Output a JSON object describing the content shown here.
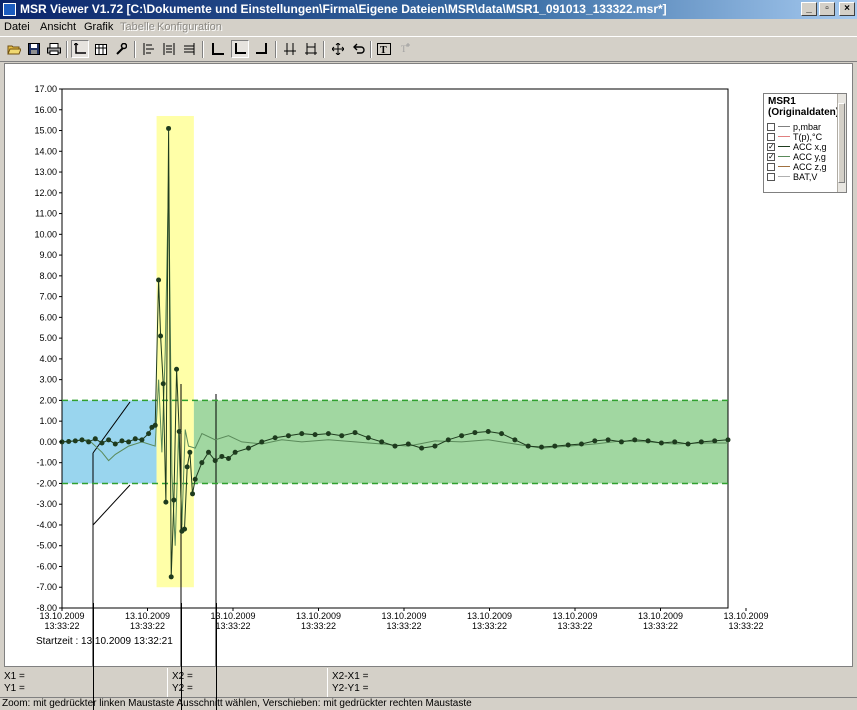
{
  "window": {
    "title": "MSR Viewer V1.72 [C:\\Dokumente und Einstellungen\\Firma\\Eigene Dateien\\MSR\\data\\MSR1_091013_133322.msr*]",
    "controls": {
      "minimize": "_",
      "maximize": "▫",
      "close": "×"
    }
  },
  "menu": {
    "items": [
      {
        "label": "Datei",
        "enabled": true
      },
      {
        "label": "Ansicht",
        "enabled": true
      },
      {
        "label": "Grafik",
        "enabled": true
      },
      {
        "label": "Tabelle",
        "enabled": false
      },
      {
        "label": "Konfiguration",
        "enabled": false
      }
    ]
  },
  "toolbar": {
    "buttons": [
      {
        "name": "open-icon"
      },
      {
        "name": "save-icon"
      },
      {
        "name": "print-icon"
      },
      {
        "name": "axis-mode-icon",
        "pressed": true
      },
      {
        "name": "table-view-icon"
      },
      {
        "name": "settings-wrench-icon"
      },
      {
        "name": "align-left-icon"
      },
      {
        "name": "align-center-icon"
      },
      {
        "name": "align-right-icon"
      },
      {
        "name": "zoom-x-icon"
      },
      {
        "name": "zoom-xy-icon",
        "pressed": true
      },
      {
        "name": "zoom-y-icon"
      },
      {
        "name": "cursor-pair-icon"
      },
      {
        "name": "cursor-diff-icon"
      },
      {
        "name": "pan-move-icon"
      },
      {
        "name": "undo-zoom-icon"
      },
      {
        "name": "text-tool-icon"
      },
      {
        "name": "text-tool-disabled-icon"
      }
    ]
  },
  "legend": {
    "title_line1": "MSR1",
    "title_line2": "(Originaldaten)",
    "items": [
      {
        "label": "p,mbar",
        "checked": false,
        "color": "#808080"
      },
      {
        "label": "T(p),°C",
        "checked": false,
        "color": "#e08080"
      },
      {
        "label": "ACC x,g",
        "checked": true,
        "color": "#1e3b1e"
      },
      {
        "label": "ACC y,g",
        "checked": true,
        "color": "#5a8a5a"
      },
      {
        "label": "ACC z,g",
        "checked": false,
        "color": "#a07040"
      },
      {
        "label": "BAT,V",
        "checked": false,
        "color": "#b0b0b0"
      }
    ]
  },
  "startzeit": "Startzeit : 13.10.2009 13:32:21",
  "measurements": {
    "x1": "X1 =",
    "y1": "Y1 =",
    "x2": "X2 =",
    "y2": "Y2 =",
    "dx": "X2-X1 =",
    "dy": "Y2-Y1 ="
  },
  "status": "Zoom: mit gedrückter linken Maustaste Ausschnitt wählen, Verschieben: mit gedrückter rechten Maustaste",
  "colors": {
    "blue_region": "#87ceeb",
    "yellow_region": "#ffff99",
    "green_region": "#90d090",
    "threshold_line": "#30a030",
    "series_x": "#1e3b1e",
    "series_y": "#5a8a5a"
  },
  "chart_data": {
    "type": "line",
    "ylim": [
      -8,
      17
    ],
    "yticks": [
      "17.00",
      "16.00",
      "15.00",
      "14.00",
      "13.00",
      "12.00",
      "11.00",
      "10.00",
      "9.00",
      "8.00",
      "7.00",
      "6.00",
      "5.00",
      "4.00",
      "3.00",
      "2.00",
      "1.00",
      "0.00",
      "-1.00",
      "-2.00",
      "-3.00",
      "-4.00",
      "-5.00",
      "-6.00",
      "-7.00",
      "-8.00"
    ],
    "xticks": [
      {
        "date": "13.10.2009",
        "time": "13:33:22"
      },
      {
        "date": "13.10.2009",
        "time": "13:33:22"
      },
      {
        "date": "13.10.2009",
        "time": "13:33:22"
      },
      {
        "date": "13.10.2009",
        "time": "13:33:22"
      },
      {
        "date": "13.10.2009",
        "time": "13:33:22"
      },
      {
        "date": "13.10.2009",
        "time": "13:33:22"
      },
      {
        "date": "13.10.2009",
        "time": "13:33:22"
      },
      {
        "date": "13.10.2009",
        "time": "13:33:22"
      },
      {
        "date": "13.10.2009",
        "time": "13:33:22"
      }
    ],
    "threshold_lines": [
      2,
      -2
    ],
    "grid": false,
    "regions": [
      {
        "name": "blue-region",
        "x_from": 0.0,
        "x_to": 0.142,
        "y_from": -2,
        "y_to": 2,
        "color": "#87ceeb"
      },
      {
        "name": "yellow-region",
        "x_from": 0.142,
        "x_to": 0.198,
        "y_from": -7,
        "y_to": 15.7,
        "color": "#ffff99"
      },
      {
        "name": "green-region",
        "x_from": 0.198,
        "x_to": 1.0,
        "y_from": -2,
        "y_to": 2,
        "color": "#90d090"
      }
    ],
    "series": [
      {
        "name": "ACC x,g",
        "markers": true,
        "color": "#1e3b1e",
        "points": [
          [
            0.0,
            0.0
          ],
          [
            0.01,
            0.02
          ],
          [
            0.02,
            0.05
          ],
          [
            0.03,
            0.1
          ],
          [
            0.04,
            0.0
          ],
          [
            0.05,
            0.15
          ],
          [
            0.06,
            -0.05
          ],
          [
            0.07,
            0.1
          ],
          [
            0.08,
            -0.1
          ],
          [
            0.09,
            0.05
          ],
          [
            0.1,
            0.0
          ],
          [
            0.11,
            0.15
          ],
          [
            0.12,
            0.1
          ],
          [
            0.13,
            0.4
          ],
          [
            0.135,
            0.7
          ],
          [
            0.14,
            0.8
          ],
          [
            0.145,
            7.8
          ],
          [
            0.148,
            5.1
          ],
          [
            0.152,
            2.8
          ],
          [
            0.156,
            -2.9
          ],
          [
            0.16,
            15.1
          ],
          [
            0.164,
            -6.5
          ],
          [
            0.168,
            -2.8
          ],
          [
            0.172,
            3.5
          ],
          [
            0.176,
            0.5
          ],
          [
            0.18,
            -4.3
          ],
          [
            0.184,
            -4.2
          ],
          [
            0.188,
            -1.2
          ],
          [
            0.192,
            -0.5
          ],
          [
            0.196,
            -2.5
          ],
          [
            0.2,
            -1.8
          ],
          [
            0.21,
            -1.0
          ],
          [
            0.22,
            -0.5
          ],
          [
            0.23,
            -0.9
          ],
          [
            0.24,
            -0.7
          ],
          [
            0.25,
            -0.8
          ],
          [
            0.26,
            -0.5
          ],
          [
            0.28,
            -0.3
          ],
          [
            0.3,
            0.0
          ],
          [
            0.32,
            0.2
          ],
          [
            0.34,
            0.3
          ],
          [
            0.36,
            0.4
          ],
          [
            0.38,
            0.35
          ],
          [
            0.4,
            0.4
          ],
          [
            0.42,
            0.3
          ],
          [
            0.44,
            0.45
          ],
          [
            0.46,
            0.2
          ],
          [
            0.48,
            0.0
          ],
          [
            0.5,
            -0.2
          ],
          [
            0.52,
            -0.1
          ],
          [
            0.54,
            -0.3
          ],
          [
            0.56,
            -0.2
          ],
          [
            0.58,
            0.1
          ],
          [
            0.6,
            0.3
          ],
          [
            0.62,
            0.45
          ],
          [
            0.64,
            0.5
          ],
          [
            0.66,
            0.4
          ],
          [
            0.68,
            0.1
          ],
          [
            0.7,
            -0.2
          ],
          [
            0.72,
            -0.25
          ],
          [
            0.74,
            -0.2
          ],
          [
            0.76,
            -0.15
          ],
          [
            0.78,
            -0.1
          ],
          [
            0.8,
            0.05
          ],
          [
            0.82,
            0.1
          ],
          [
            0.84,
            0.0
          ],
          [
            0.86,
            0.1
          ],
          [
            0.88,
            0.05
          ],
          [
            0.9,
            -0.05
          ],
          [
            0.92,
            0.0
          ],
          [
            0.94,
            -0.1
          ],
          [
            0.96,
            0.0
          ],
          [
            0.98,
            0.05
          ],
          [
            1.0,
            0.1
          ]
        ]
      },
      {
        "name": "ACC y,g",
        "markers": false,
        "color": "#5a8a5a",
        "points": [
          [
            0.0,
            0.0
          ],
          [
            0.02,
            0.05
          ],
          [
            0.04,
            0.1
          ],
          [
            0.06,
            -0.5
          ],
          [
            0.07,
            -0.9
          ],
          [
            0.08,
            -0.6
          ],
          [
            0.1,
            -0.2
          ],
          [
            0.12,
            0.0
          ],
          [
            0.14,
            -0.2
          ],
          [
            0.145,
            3.0
          ],
          [
            0.15,
            -0.5
          ],
          [
            0.155,
            4.3
          ],
          [
            0.16,
            12.8
          ],
          [
            0.165,
            -1.5
          ],
          [
            0.17,
            -5.0
          ],
          [
            0.175,
            0.5
          ],
          [
            0.18,
            -4.0
          ],
          [
            0.185,
            0.6
          ],
          [
            0.19,
            -0.2
          ],
          [
            0.2,
            -0.3
          ],
          [
            0.21,
            0.4
          ],
          [
            0.23,
            0.1
          ],
          [
            0.25,
            0.3
          ],
          [
            0.27,
            0.0
          ],
          [
            0.3,
            -0.1
          ],
          [
            0.33,
            0.1
          ],
          [
            0.36,
            0.0
          ],
          [
            0.4,
            0.1
          ],
          [
            0.44,
            0.0
          ],
          [
            0.48,
            -0.1
          ],
          [
            0.52,
            -0.2
          ],
          [
            0.56,
            0.05
          ],
          [
            0.6,
            0.0
          ],
          [
            0.64,
            0.1
          ],
          [
            0.68,
            -0.1
          ],
          [
            0.72,
            -0.3
          ],
          [
            0.76,
            -0.2
          ],
          [
            0.8,
            -0.1
          ],
          [
            0.84,
            0.05
          ],
          [
            0.88,
            0.0
          ],
          [
            0.92,
            -0.1
          ],
          [
            0.96,
            -0.05
          ],
          [
            1.0,
            -0.05
          ]
        ]
      }
    ]
  }
}
